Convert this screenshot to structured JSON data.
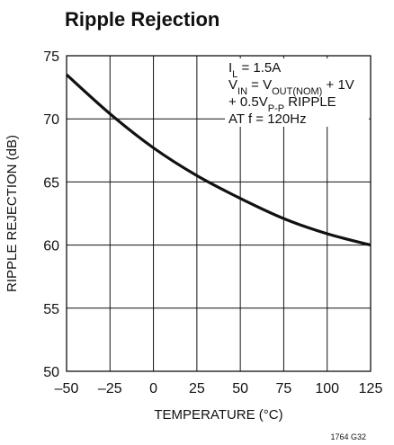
{
  "chart_data": {
    "type": "line",
    "title": "Ripple Rejection",
    "xlabel": "TEMPERATURE (°C)",
    "ylabel": "RIPPLE REJECTION (dB)",
    "xlim": [
      -50,
      125
    ],
    "ylim": [
      50,
      75
    ],
    "xticks": [
      "–50",
      "–25",
      "0",
      "25",
      "50",
      "75",
      "100",
      "125"
    ],
    "yticks": [
      "50",
      "55",
      "60",
      "65",
      "70",
      "75"
    ],
    "grid": true,
    "series": [
      {
        "x": [
          -50,
          -25,
          0,
          25,
          50,
          75,
          100,
          125
        ],
        "y": [
          73.5,
          70.4,
          67.7,
          65.5,
          63.7,
          62.1,
          60.9,
          60.0
        ]
      }
    ],
    "annotation": {
      "line1_main": "I",
      "line1_sub": "L",
      "line1_rest": " = 1.5A",
      "line2_main": "V",
      "line2_sub1": "IN",
      "line2_mid": " = V",
      "line2_sub2": "OUT(NOM)",
      "line2_rest": " + 1V",
      "line3_main": "+ 0.5V",
      "line3_sub": "P-P",
      "line3_rest": " RIPPLE",
      "line4": "AT f = 120Hz"
    },
    "figure_code": "1764 G32"
  }
}
